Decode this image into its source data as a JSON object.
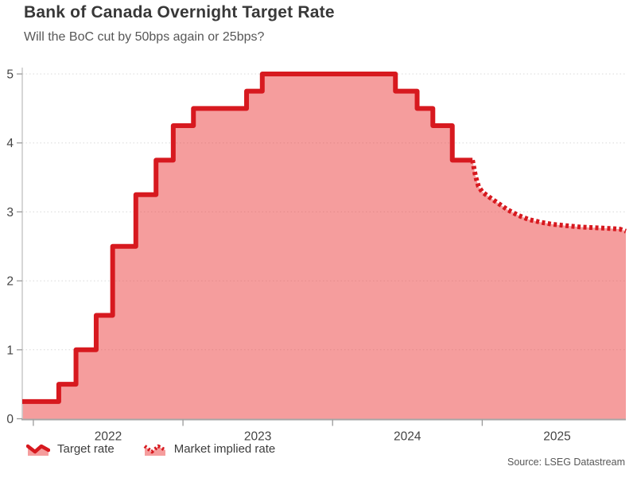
{
  "header": {
    "title": "Bank of Canada Overnight Target Rate",
    "subtitle": "Will the BoC cut by 50bps again or 25bps?"
  },
  "legend": {
    "items": [
      {
        "label": "Target rate",
        "style": "solid"
      },
      {
        "label": "Market implied rate",
        "style": "dotted"
      }
    ]
  },
  "footer": {
    "source": "Source: LSEG Datastream"
  },
  "chart_data": {
    "type": "area",
    "title": "Bank of Canada Overnight Target Rate",
    "subtitle": "Will the BoC cut by 50bps again or 25bps?",
    "xlabel": "",
    "ylabel": "",
    "xlim": [
      2021.926,
      2025.96
    ],
    "ylim": [
      0,
      5
    ],
    "y_ticks": [
      0,
      1,
      2,
      3,
      4,
      5
    ],
    "x_ticks": [
      2022,
      2023,
      2024,
      2025
    ],
    "grid": "horizontal-dotted",
    "legend_position": "bottom-left",
    "series": [
      {
        "name": "Target rate",
        "style": "solid-step",
        "points": [
          [
            2021.926,
            0.25
          ],
          [
            2022.17,
            0.5
          ],
          [
            2022.285,
            1.0
          ],
          [
            2022.42,
            1.5
          ],
          [
            2022.53,
            2.5
          ],
          [
            2022.685,
            3.25
          ],
          [
            2022.82,
            3.75
          ],
          [
            2022.935,
            4.25
          ],
          [
            2023.07,
            4.5
          ],
          [
            2023.425,
            4.75
          ],
          [
            2023.53,
            5.0
          ],
          [
            2024.42,
            4.75
          ],
          [
            2024.565,
            4.5
          ],
          [
            2024.67,
            4.25
          ],
          [
            2024.8,
            3.75
          ],
          [
            2024.935,
            3.75
          ]
        ]
      },
      {
        "name": "Market implied rate",
        "style": "dotted",
        "points": [
          [
            2024.935,
            3.75
          ],
          [
            2024.955,
            3.52
          ],
          [
            2024.975,
            3.37
          ],
          [
            2025.0,
            3.29
          ],
          [
            2025.05,
            3.21
          ],
          [
            2025.11,
            3.12
          ],
          [
            2025.17,
            3.03
          ],
          [
            2025.24,
            2.95
          ],
          [
            2025.31,
            2.89
          ],
          [
            2025.39,
            2.85
          ],
          [
            2025.47,
            2.82
          ],
          [
            2025.56,
            2.8
          ],
          [
            2025.66,
            2.78
          ],
          [
            2025.76,
            2.77
          ],
          [
            2025.85,
            2.76
          ],
          [
            2025.92,
            2.75
          ],
          [
            2025.96,
            2.72
          ]
        ]
      }
    ],
    "colors": {
      "line": "#d7191f",
      "fill": "rgba(237,76,76,0.55)",
      "grid": "#d9d9d9",
      "axis_y": "#cccccc",
      "axis_x": "#a6a6a6",
      "tick": "#9b9b9b",
      "text": "#444444"
    }
  }
}
